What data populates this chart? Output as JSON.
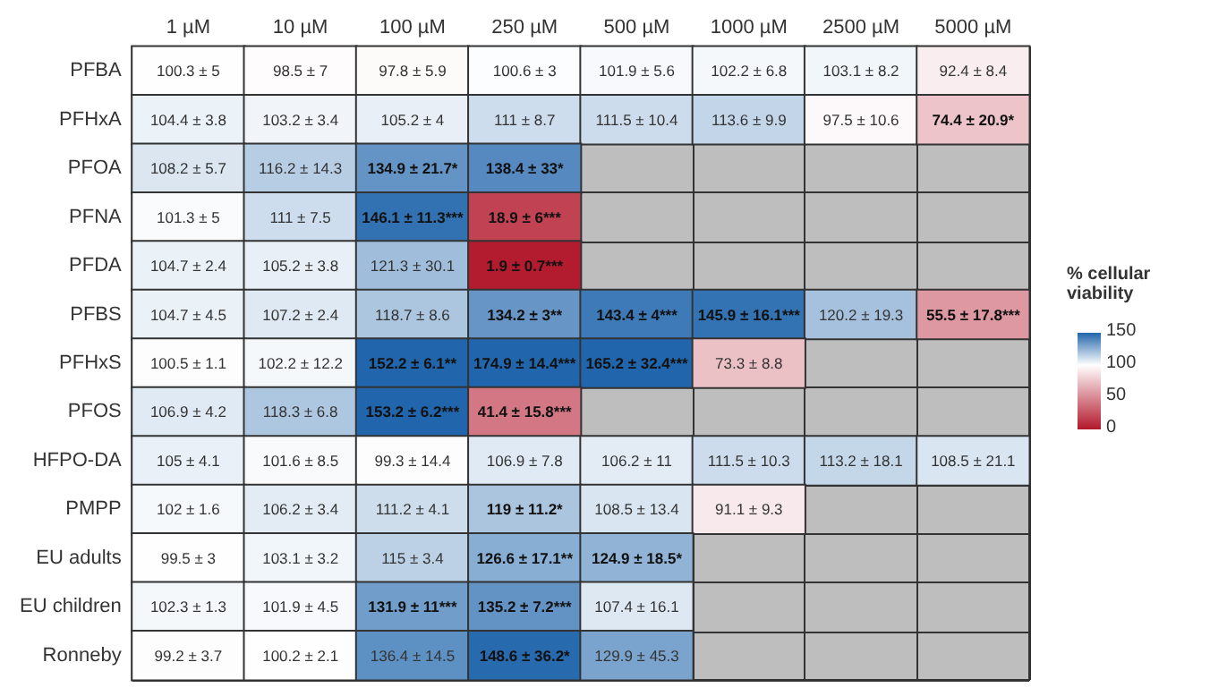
{
  "chart_data": {
    "type": "heatmap",
    "categories": [
      "1 µM",
      "10 µM",
      "100 µM",
      "250 µM",
      "500 µM",
      "1000 µM",
      "2500 µM",
      "5000 µM"
    ],
    "y_categories": [
      "PFBA",
      "PFHxA",
      "PFOA",
      "PFNA",
      "PFDA",
      "PFBS",
      "PFHxS",
      "PFOS",
      "HFPO-DA",
      "PMPP",
      "EU adults",
      "EU children",
      "Ronneby"
    ],
    "cells": [
      [
        100.3,
        98.5,
        97.8,
        100.6,
        101.9,
        102.2,
        103.1,
        92.4
      ],
      [
        104.4,
        103.2,
        105.2,
        111,
        111.5,
        113.6,
        97.5,
        74.4
      ],
      [
        108.2,
        116.2,
        134.9,
        138.4,
        null,
        null,
        null,
        null
      ],
      [
        101.3,
        111,
        146.1,
        18.9,
        null,
        null,
        null,
        null
      ],
      [
        104.7,
        105.2,
        121.3,
        1.9,
        null,
        null,
        null,
        null
      ],
      [
        104.7,
        107.2,
        118.7,
        134.2,
        143.4,
        145.9,
        120.2,
        55.5
      ],
      [
        100.5,
        102.2,
        152.2,
        174.9,
        165.2,
        73.3,
        null,
        null
      ],
      [
        106.9,
        118.3,
        153.2,
        41.4,
        null,
        null,
        null,
        null
      ],
      [
        105,
        101.6,
        99.3,
        106.9,
        106.2,
        111.5,
        113.2,
        108.5
      ],
      [
        102,
        106.2,
        111.2,
        119,
        108.5,
        91.1,
        null,
        null
      ],
      [
        99.5,
        103.1,
        115,
        126.6,
        124.9,
        null,
        null,
        null
      ],
      [
        102.3,
        101.9,
        131.9,
        135.2,
        107.4,
        null,
        null,
        null
      ],
      [
        99.2,
        100.2,
        136.4,
        148.6,
        129.9,
        null,
        null,
        null
      ]
    ],
    "cell_labels": [
      [
        "100.3 ± 5",
        "98.5 ± 7",
        "97.8 ± 5.9",
        "100.6 ± 3",
        "101.9 ± 5.6",
        "102.2 ± 6.8",
        "103.1 ± 8.2",
        "92.4 ± 8.4"
      ],
      [
        "104.4 ± 3.8",
        "103.2 ± 3.4",
        "105.2 ± 4",
        "111 ± 8.7",
        "111.5 ± 10.4",
        "113.6 ± 9.9",
        "97.5 ± 10.6",
        "74.4 ± 20.9*"
      ],
      [
        "108.2 ± 5.7",
        "116.2 ± 14.3",
        "134.9 ± 21.7*",
        "138.4 ± 33*",
        null,
        null,
        null,
        null
      ],
      [
        "101.3 ± 5",
        "111 ± 7.5",
        "146.1 ± 11.3***",
        "18.9 ± 6***",
        null,
        null,
        null,
        null
      ],
      [
        "104.7 ± 2.4",
        "105.2 ± 3.8",
        "121.3 ± 30.1",
        "1.9 ± 0.7***",
        null,
        null,
        null,
        null
      ],
      [
        "104.7 ± 4.5",
        "107.2 ± 2.4",
        "118.7 ± 8.6",
        "134.2 ± 3**",
        "143.4 ± 4***",
        "145.9 ± 16.1***",
        "120.2 ± 19.3",
        "55.5 ± 17.8***"
      ],
      [
        "100.5 ± 1.1",
        "102.2 ± 12.2",
        "152.2 ± 6.1**",
        "174.9 ± 14.4***",
        "165.2 ± 32.4***",
        "73.3 ± 8.8",
        null,
        null
      ],
      [
        "106.9 ± 4.2",
        "118.3 ± 6.8",
        "153.2 ± 6.2***",
        "41.4 ± 15.8***",
        null,
        null,
        null,
        null
      ],
      [
        "105 ± 4.1",
        "101.6 ± 8.5",
        "99.3 ± 14.4",
        "106.9 ± 7.8",
        "106.2 ± 11",
        "111.5 ± 10.3",
        "113.2 ± 18.1",
        "108.5 ± 21.1"
      ],
      [
        "102 ± 1.6",
        "106.2 ± 3.4",
        "111.2 ± 4.1",
        "119 ± 11.2*",
        "108.5 ± 13.4",
        "91.1 ± 9.3",
        null,
        null
      ],
      [
        "99.5 ± 3",
        "103.1 ± 3.2",
        "115 ± 3.4",
        "126.6 ± 17.1**",
        "124.9 ± 18.5*",
        null,
        null,
        null
      ],
      [
        "102.3 ± 1.3",
        "101.9 ± 4.5",
        "131.9 ± 11***",
        "135.2 ± 7.2***",
        "107.4 ± 16.1",
        null,
        null,
        null
      ],
      [
        "99.2 ± 3.7",
        "100.2 ± 2.1",
        "136.4 ± 14.5",
        "148.6 ± 36.2*",
        "129.9 ± 45.3",
        null,
        null,
        null
      ]
    ],
    "clabel": "% cellular viability",
    "clim": [
      0,
      150
    ],
    "cticks": [
      0,
      50,
      100,
      150
    ]
  }
}
